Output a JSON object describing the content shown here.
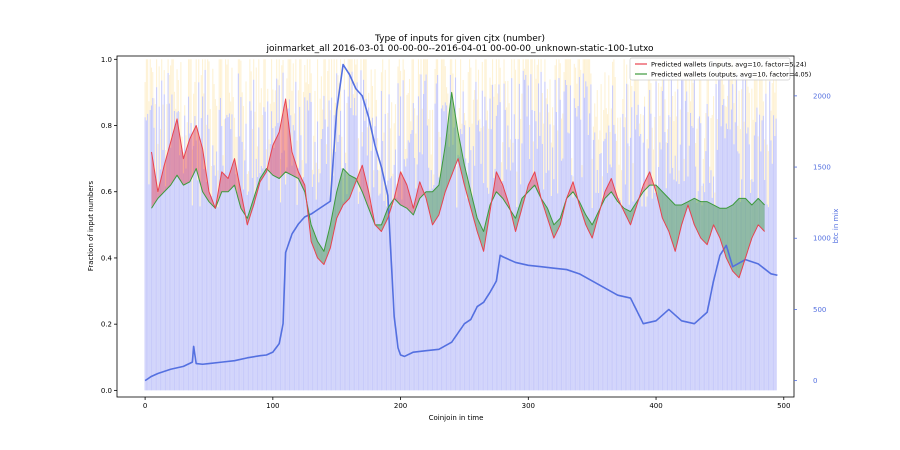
{
  "chart_data": {
    "type": "line",
    "title": "Type of inputs for given cjtx (number)",
    "subtitle": "joinmarket_all 2016-03-01 00-00-00--2016-04-01 00-00-00_unknown-static-100-1utxo",
    "xlabel": "Coinjoin in time",
    "ylabel": "Fraction of input numbers",
    "y2label": "btc in mix",
    "xlim": [
      -22,
      508
    ],
    "ylim": [
      -0.02,
      1.01
    ],
    "y2lim": [
      -115,
      2280
    ],
    "xticks": [
      0,
      100,
      200,
      300,
      400,
      500
    ],
    "yticks": [
      0.0,
      0.2,
      0.4,
      0.6,
      0.8,
      1.0
    ],
    "y2ticks": [
      0,
      500,
      1000,
      1500,
      2000
    ],
    "legend_position": "top-right",
    "bar_count": 495,
    "series": [
      {
        "name": "Predicted wallets (inputs, avg=10, factor=5.24)",
        "color": "#e8434f",
        "x": [
          5,
          10,
          15,
          20,
          25,
          30,
          35,
          40,
          45,
          50,
          55,
          60,
          65,
          70,
          75,
          80,
          85,
          90,
          95,
          100,
          105,
          110,
          115,
          120,
          125,
          130,
          135,
          140,
          145,
          150,
          155,
          160,
          165,
          170,
          175,
          180,
          185,
          190,
          195,
          200,
          205,
          210,
          215,
          220,
          225,
          230,
          235,
          240,
          245,
          250,
          255,
          260,
          265,
          270,
          275,
          280,
          285,
          290,
          295,
          300,
          305,
          310,
          315,
          320,
          325,
          330,
          335,
          340,
          345,
          350,
          355,
          360,
          365,
          370,
          375,
          380,
          385,
          390,
          395,
          400,
          405,
          410,
          415,
          420,
          425,
          430,
          435,
          440,
          445,
          450,
          455,
          460,
          465,
          470,
          475,
          480,
          485
        ],
        "values": [
          0.72,
          0.6,
          0.68,
          0.75,
          0.82,
          0.7,
          0.76,
          0.8,
          0.73,
          0.6,
          0.55,
          0.66,
          0.64,
          0.7,
          0.6,
          0.5,
          0.56,
          0.63,
          0.66,
          0.74,
          0.78,
          0.88,
          0.72,
          0.66,
          0.62,
          0.45,
          0.4,
          0.38,
          0.43,
          0.52,
          0.56,
          0.58,
          0.63,
          0.68,
          0.6,
          0.5,
          0.48,
          0.52,
          0.58,
          0.66,
          0.62,
          0.55,
          0.63,
          0.58,
          0.5,
          0.53,
          0.6,
          0.65,
          0.7,
          0.62,
          0.55,
          0.48,
          0.42,
          0.54,
          0.66,
          0.62,
          0.56,
          0.48,
          0.55,
          0.62,
          0.66,
          0.58,
          0.52,
          0.46,
          0.5,
          0.58,
          0.63,
          0.56,
          0.5,
          0.46,
          0.53,
          0.6,
          0.64,
          0.58,
          0.54,
          0.5,
          0.56,
          0.62,
          0.66,
          0.6,
          0.52,
          0.48,
          0.42,
          0.5,
          0.56,
          0.5,
          0.46,
          0.44,
          0.5,
          0.46,
          0.4,
          0.36,
          0.34,
          0.4,
          0.46,
          0.5,
          0.48
        ]
      },
      {
        "name": "Predicted wallets (outputs, avg=10, factor=4.05)",
        "color": "#3d9a3d",
        "x": [
          5,
          10,
          15,
          20,
          25,
          30,
          35,
          40,
          45,
          50,
          55,
          60,
          65,
          70,
          75,
          80,
          85,
          90,
          95,
          100,
          105,
          110,
          115,
          120,
          125,
          130,
          135,
          140,
          145,
          150,
          155,
          160,
          165,
          170,
          175,
          180,
          185,
          190,
          195,
          200,
          205,
          210,
          215,
          220,
          225,
          230,
          235,
          240,
          245,
          250,
          255,
          260,
          265,
          270,
          275,
          280,
          285,
          290,
          295,
          300,
          305,
          310,
          315,
          320,
          325,
          330,
          335,
          340,
          345,
          350,
          355,
          360,
          365,
          370,
          375,
          380,
          385,
          390,
          395,
          400,
          405,
          410,
          415,
          420,
          425,
          430,
          435,
          440,
          445,
          450,
          455,
          460,
          465,
          470,
          475,
          480,
          485
        ],
        "values": [
          0.55,
          0.58,
          0.6,
          0.62,
          0.65,
          0.62,
          0.63,
          0.67,
          0.6,
          0.57,
          0.55,
          0.6,
          0.6,
          0.62,
          0.55,
          0.52,
          0.58,
          0.64,
          0.67,
          0.65,
          0.64,
          0.66,
          0.65,
          0.64,
          0.6,
          0.5,
          0.45,
          0.42,
          0.5,
          0.6,
          0.67,
          0.65,
          0.64,
          0.6,
          0.55,
          0.5,
          0.5,
          0.55,
          0.58,
          0.56,
          0.55,
          0.53,
          0.58,
          0.6,
          0.6,
          0.62,
          0.74,
          0.9,
          0.78,
          0.68,
          0.6,
          0.52,
          0.48,
          0.56,
          0.6,
          0.58,
          0.55,
          0.52,
          0.58,
          0.6,
          0.62,
          0.58,
          0.55,
          0.5,
          0.52,
          0.58,
          0.6,
          0.57,
          0.53,
          0.5,
          0.54,
          0.58,
          0.6,
          0.57,
          0.55,
          0.54,
          0.57,
          0.6,
          0.62,
          0.62,
          0.6,
          0.58,
          0.56,
          0.56,
          0.57,
          0.58,
          0.57,
          0.57,
          0.56,
          0.55,
          0.55,
          0.56,
          0.58,
          0.58,
          0.56,
          0.58,
          0.56
        ]
      },
      {
        "name": "btc in mix",
        "axis": "y2",
        "color": "#5470e0",
        "x": [
          0,
          5,
          10,
          20,
          30,
          37,
          38,
          40,
          45,
          50,
          60,
          70,
          80,
          90,
          95,
          100,
          105,
          108,
          110,
          115,
          120,
          125,
          130,
          135,
          140,
          145,
          150,
          155,
          160,
          165,
          170,
          175,
          180,
          185,
          190,
          195,
          198,
          200,
          203,
          210,
          220,
          230,
          240,
          250,
          255,
          260,
          265,
          270,
          275,
          278,
          280,
          290,
          300,
          310,
          320,
          330,
          340,
          350,
          360,
          370,
          380,
          390,
          400,
          410,
          420,
          430,
          440,
          445,
          450,
          455,
          460,
          470,
          480,
          490,
          495
        ],
        "values": [
          0,
          30,
          50,
          80,
          100,
          130,
          240,
          120,
          115,
          120,
          130,
          140,
          160,
          175,
          180,
          200,
          260,
          400,
          900,
          1030,
          1100,
          1150,
          1170,
          1200,
          1230,
          1260,
          1900,
          2220,
          2150,
          2050,
          2000,
          1850,
          1650,
          1500,
          1300,
          450,
          230,
          180,
          170,
          200,
          210,
          220,
          270,
          400,
          430,
          520,
          550,
          620,
          700,
          880,
          870,
          830,
          810,
          800,
          790,
          780,
          750,
          700,
          650,
          600,
          580,
          400,
          420,
          500,
          420,
          400,
          480,
          700,
          880,
          950,
          800,
          850,
          820,
          750,
          740
        ]
      }
    ]
  }
}
